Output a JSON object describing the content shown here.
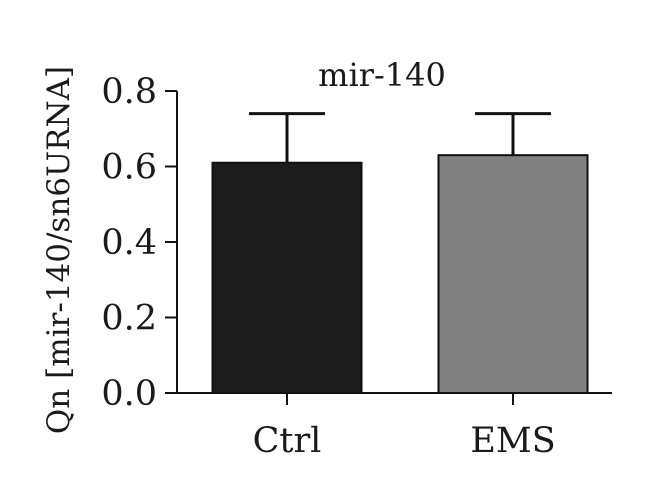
{
  "chart_data": {
    "type": "bar",
    "title": "mir-140",
    "xlabel": "",
    "ylabel": "Qn [mir-140/sn6URNA]",
    "categories": [
      "Ctrl",
      "EMS"
    ],
    "values": [
      0.61,
      0.63
    ],
    "errors": [
      0.13,
      0.11
    ],
    "colors": [
      "#1c1c1c",
      "#808080"
    ],
    "ylim": [
      0,
      0.8
    ],
    "yticks": [
      0,
      0.2,
      0.4,
      0.6,
      0.8
    ],
    "ytick_labels": [
      "0.0",
      "0.2",
      "0.4",
      "0.6",
      "0.8"
    ],
    "grid": false,
    "legend": "none"
  }
}
